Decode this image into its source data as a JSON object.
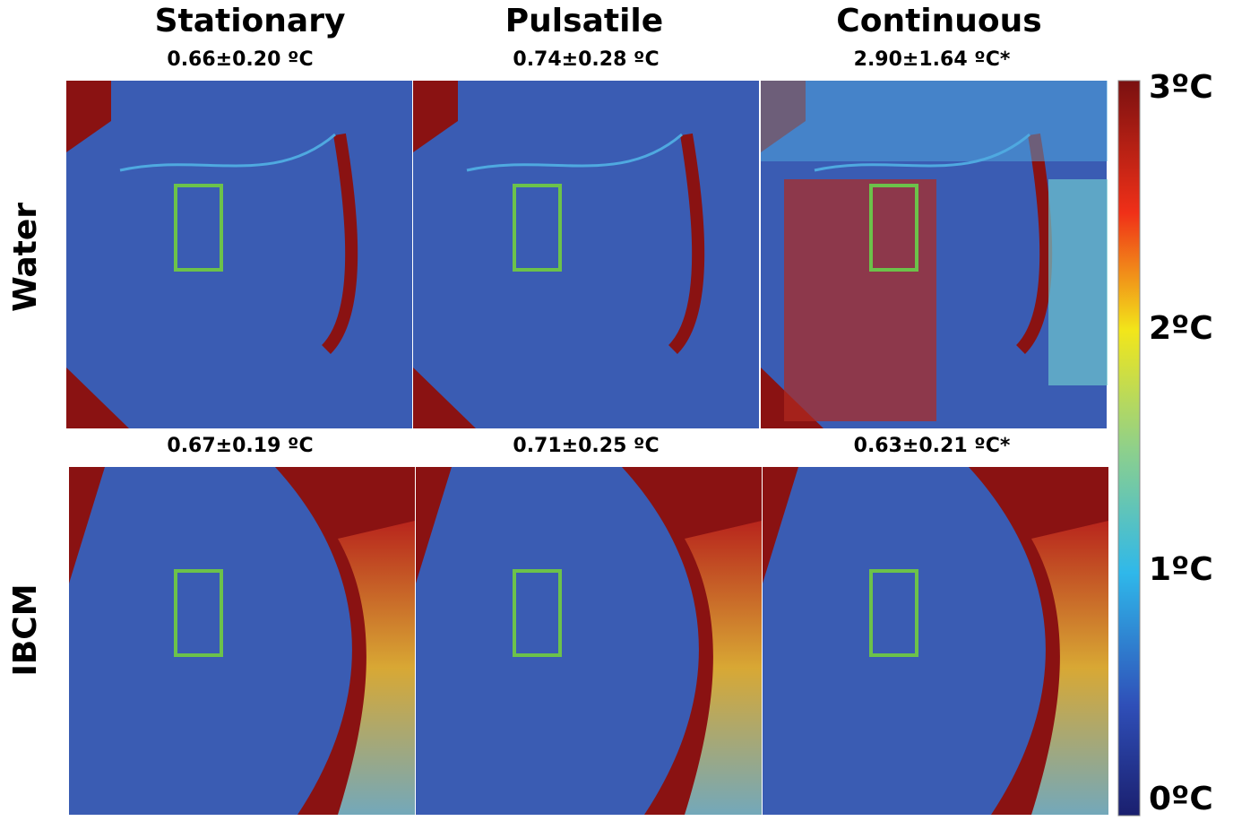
{
  "columns": [
    "Stationary",
    "Pulsatile",
    "Continuous"
  ],
  "rows": [
    {
      "label": "Water",
      "values": [
        "0.66±0.20 ºC",
        "0.74±0.28 ºC",
        "2.90±1.64 ºC*"
      ]
    },
    {
      "label": "IBCM",
      "values": [
        "0.67±0.19 ºC",
        "0.71±0.25 ºC",
        "0.63±0.21 ºC*"
      ]
    }
  ],
  "colorbar": {
    "ticks": [
      "3ºC",
      "2ºC",
      "1ºC",
      "0ºC"
    ]
  }
}
